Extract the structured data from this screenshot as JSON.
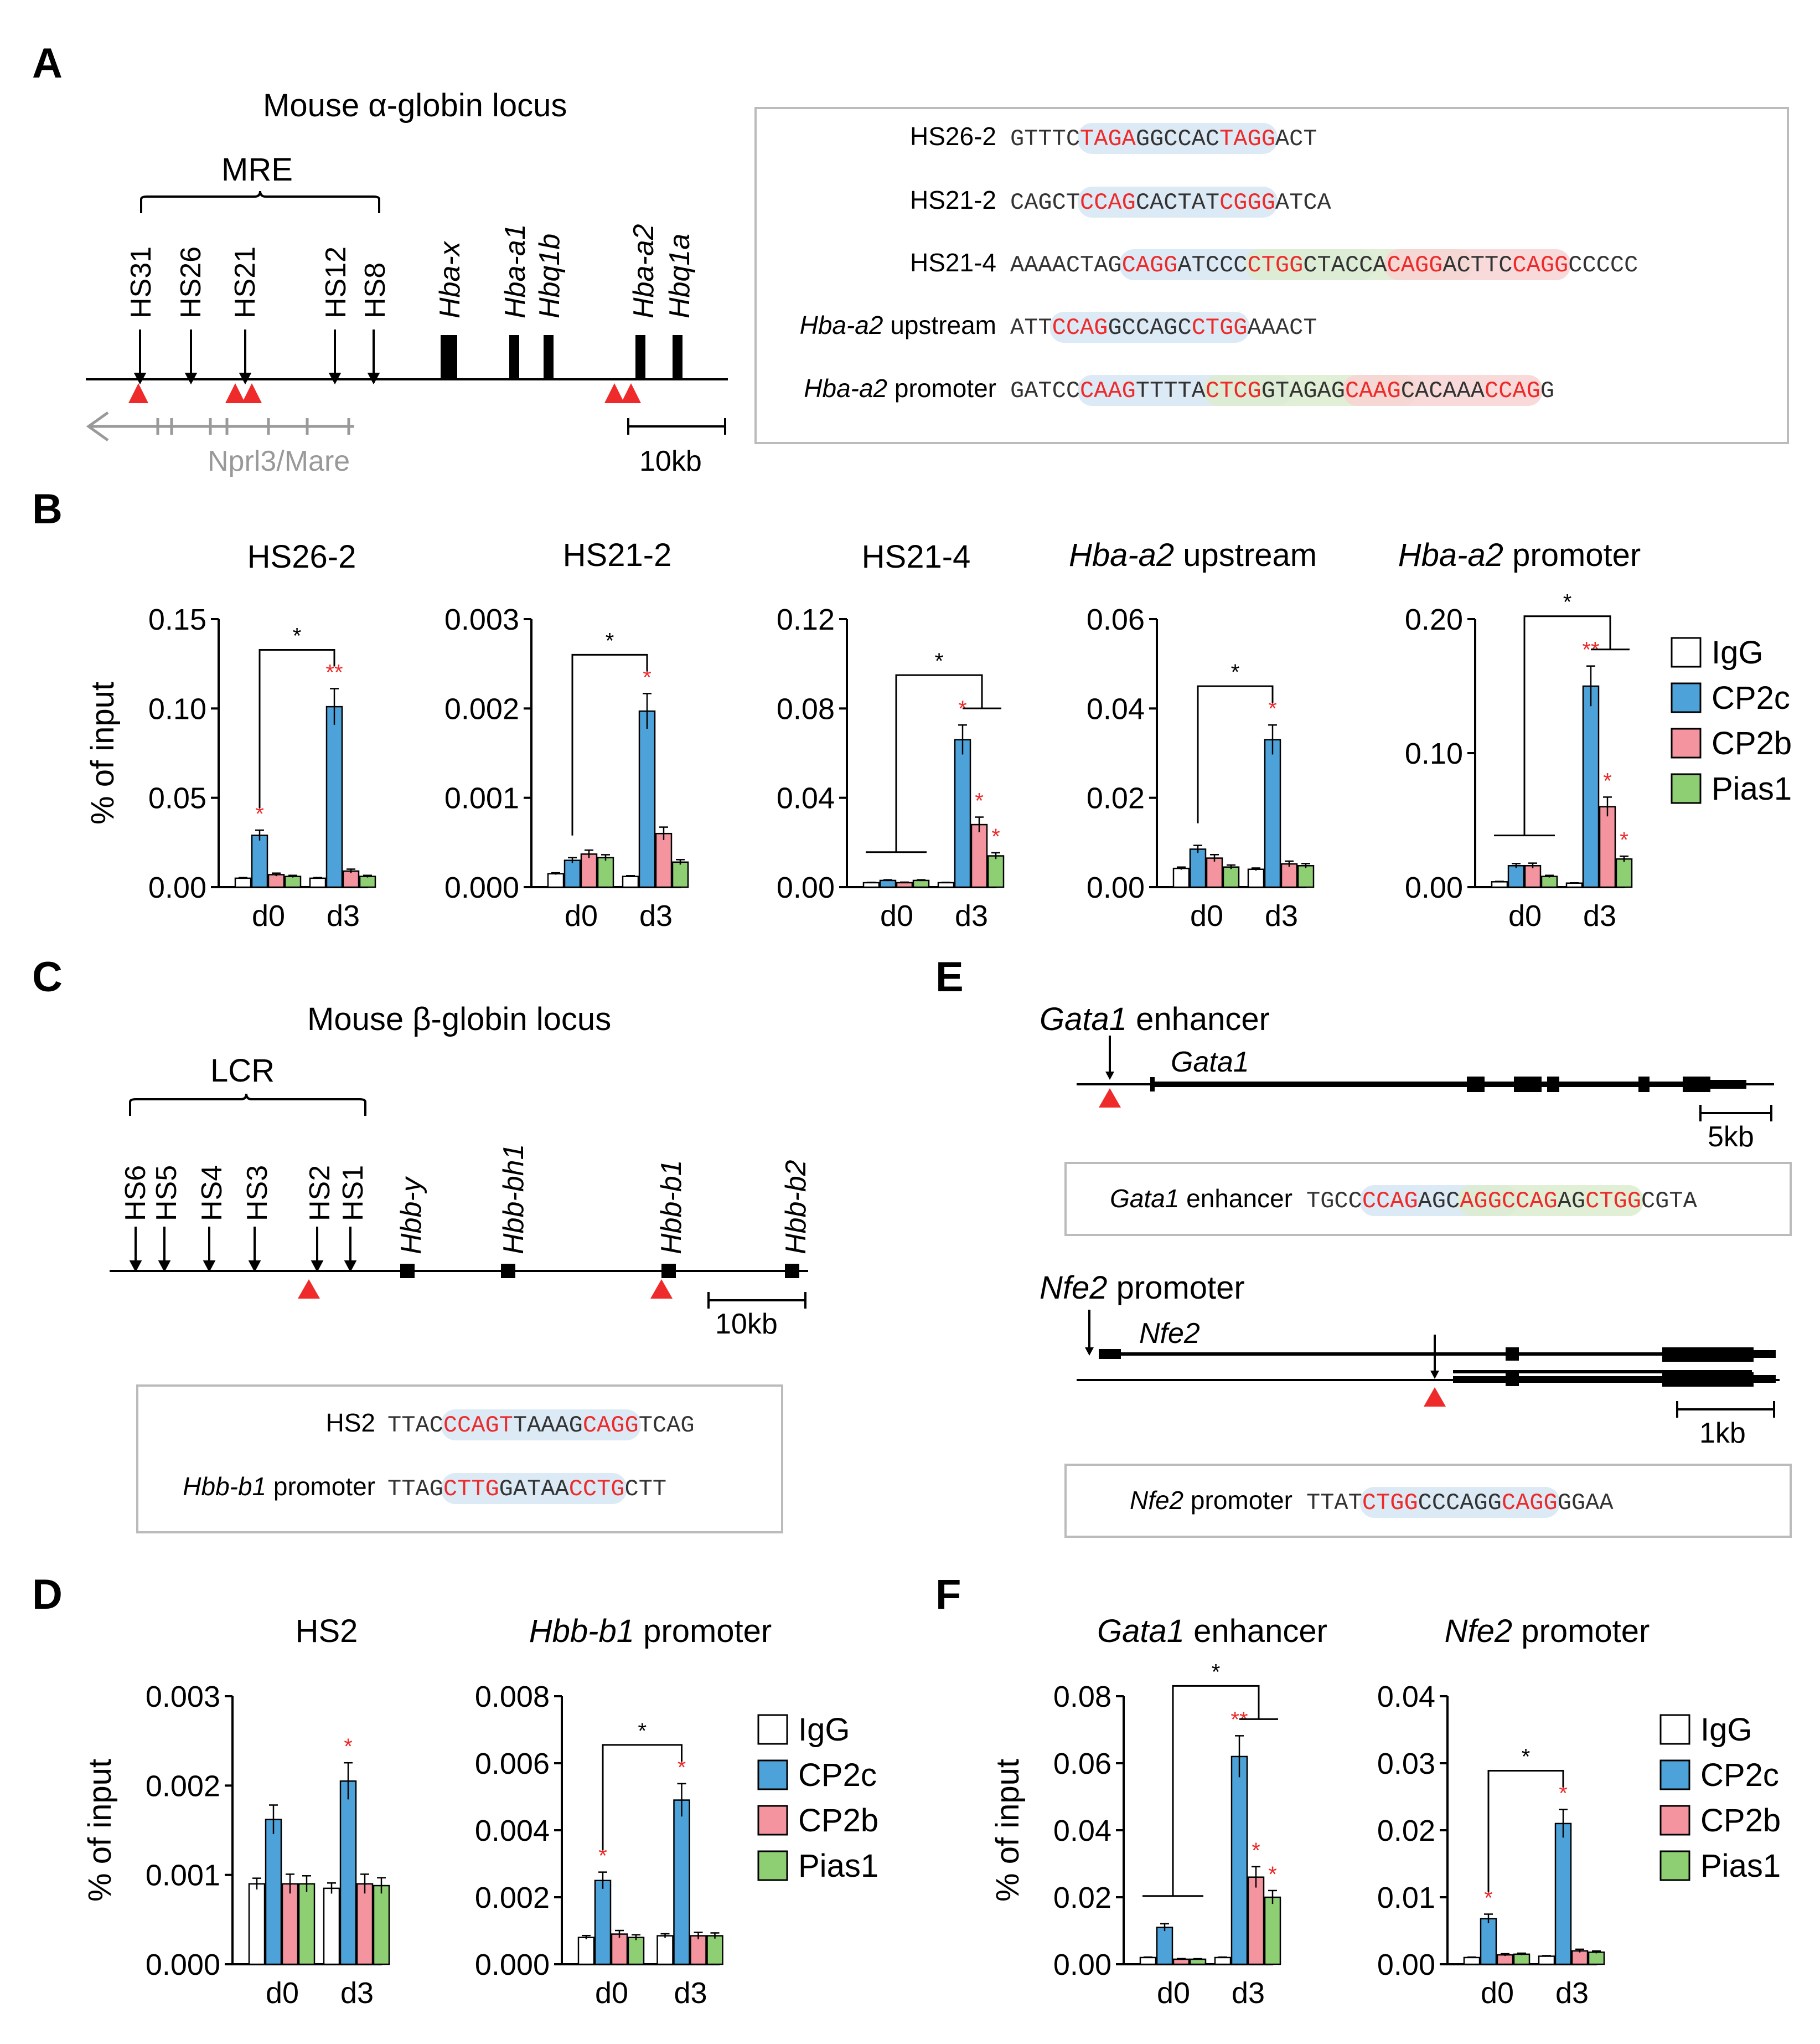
{
  "panels": {
    "A": "A",
    "B": "B",
    "C": "C",
    "D": "D",
    "E": "E",
    "F": "F"
  },
  "colors": {
    "IgG": "#ffffff",
    "CP2c": "#4da3d9",
    "CP2b": "#f4949f",
    "Pias1": "#8fcf74",
    "red": "#ee2a2a",
    "blueBox": "#d6e6f5",
    "greenBox": "#dceccf",
    "redBox": "#f8d4d4"
  },
  "panelA": {
    "title": "Mouse α-globin locus",
    "mre": "MRE",
    "hs": [
      "HS31",
      "HS26",
      "HS21",
      "HS12",
      "HS8"
    ],
    "genes": [
      "Hba-x",
      "Hba-a1",
      "Hbq1b",
      "Hba-a2",
      "Hbq1a"
    ],
    "nprl": "Nprl3/Mare",
    "scale": "10kb",
    "sequences": [
      {
        "label": "HS26-2",
        "seq": "GTTTCTAGAGGCCACTAGGACT"
      },
      {
        "label": "HS21-2",
        "seq": "CAGCTCCAGCACTATCGGGATCA"
      },
      {
        "label": "HS21-4",
        "seq": "AAAACTAGCAGGATCCCCTGGCTACCACAGGACTTCCAGGCCCCC"
      },
      {
        "label_gene": "Hba-a2",
        "label_rest": " upstream",
        "seq": "ATTCCAGGCCAGCCTGGAAACT"
      },
      {
        "label_gene": "Hba-a2",
        "label_rest": " promoter",
        "seq": "GATCCCAAGTTTTACTCGGTAGAGCAAGCACAAACCAGG"
      }
    ]
  },
  "panelC": {
    "title": "Mouse β-globin locus",
    "lcr": "LCR",
    "hs": [
      "HS6",
      "HS5",
      "HS4",
      "HS3",
      "HS2",
      "HS1"
    ],
    "genes": [
      "Hbb-y",
      "Hbb-bh1",
      "Hbb-b1",
      "Hbb-b2"
    ],
    "scale": "10kb",
    "sequences": [
      {
        "label": "HS2",
        "seq": "TTACCCAGTTAAAGCAGGTCAG"
      },
      {
        "label_gene": "Hbb-b1",
        "label_rest": " promoter",
        "seq": "TTAGCTTGGATAACCTGCTT"
      }
    ]
  },
  "panelE": {
    "gata1_title_gene": "Gata1",
    "gata1_title_rest": " enhancer",
    "gata1_gene": "Gata1",
    "gata1_scale": "5kb",
    "gata1_seq_label_gene": "Gata1",
    "gata1_seq_label_rest": " enhancer",
    "gata1_seq": "TGCCCCAGAGCAGGCCAGAGCTGGCGTA",
    "nfe2_title_gene": "Nfe2",
    "nfe2_title_rest": " promoter",
    "nfe2_gene": "Nfe2",
    "nfe2_scale": "1kb",
    "nfe2_seq_label_gene": "Nfe2",
    "nfe2_seq_label_rest": " promoter",
    "nfe2_seq": "TTATCTGGCCCAGGCAGGGGAA"
  },
  "legend": [
    "IgG",
    "CP2c",
    "CP2b",
    "Pias1"
  ],
  "ylabel": "% of input",
  "sig": "*",
  "sig2": "**",
  "chart_data": [
    {
      "type": "bar",
      "panel": "B",
      "title": "HS26-2",
      "categories": [
        "d0",
        "d3"
      ],
      "ylim": [
        0,
        0.15
      ],
      "yticks": [
        "0.00",
        "0.05",
        "0.10",
        "0.15"
      ],
      "series": [
        {
          "name": "IgG",
          "values": [
            0.005,
            0.005
          ]
        },
        {
          "name": "CP2c",
          "values": [
            0.029,
            0.101
          ]
        },
        {
          "name": "CP2b",
          "values": [
            0.007,
            0.009
          ]
        },
        {
          "name": "Pias1",
          "values": [
            0.006,
            0.006
          ]
        }
      ]
    },
    {
      "type": "bar",
      "panel": "B",
      "title": "HS21-2",
      "categories": [
        "d0",
        "d3"
      ],
      "ylim": [
        0,
        0.003
      ],
      "yticks": [
        "0.000",
        "0.001",
        "0.002",
        "0.003"
      ],
      "series": [
        {
          "name": "IgG",
          "values": [
            0.00015,
            0.00012
          ]
        },
        {
          "name": "CP2c",
          "values": [
            0.0003,
            0.00197
          ]
        },
        {
          "name": "CP2b",
          "values": [
            0.00037,
            0.0006
          ]
        },
        {
          "name": "Pias1",
          "values": [
            0.00033,
            0.00028
          ]
        }
      ]
    },
    {
      "type": "bar",
      "panel": "B",
      "title": "HS21-4",
      "categories": [
        "d0",
        "d3"
      ],
      "ylim": [
        0,
        0.12
      ],
      "yticks": [
        "0.00",
        "0.04",
        "0.08",
        "0.12"
      ],
      "series": [
        {
          "name": "IgG",
          "values": [
            0.002,
            0.002
          ]
        },
        {
          "name": "CP2c",
          "values": [
            0.003,
            0.066
          ]
        },
        {
          "name": "CP2b",
          "values": [
            0.002,
            0.028
          ]
        },
        {
          "name": "Pias1",
          "values": [
            0.003,
            0.014
          ]
        }
      ]
    },
    {
      "type": "bar",
      "panel": "B",
      "title": "Hba-a2 upstream",
      "categories": [
        "d0",
        "d3"
      ],
      "ylim": [
        0,
        0.06
      ],
      "yticks": [
        "0.00",
        "0.02",
        "0.04",
        "0.06"
      ],
      "series": [
        {
          "name": "IgG",
          "values": [
            0.0042,
            0.004
          ]
        },
        {
          "name": "CP2c",
          "values": [
            0.0085,
            0.033
          ]
        },
        {
          "name": "CP2b",
          "values": [
            0.0065,
            0.0052
          ]
        },
        {
          "name": "Pias1",
          "values": [
            0.0045,
            0.0048
          ]
        }
      ]
    },
    {
      "type": "bar",
      "panel": "B",
      "title": "Hba-a2 promoter",
      "categories": [
        "d0",
        "d3"
      ],
      "ylim": [
        0,
        0.2
      ],
      "yticks": [
        "0.00",
        "0.10",
        "0.20"
      ],
      "series": [
        {
          "name": "IgG",
          "values": [
            0.004,
            0.003
          ]
        },
        {
          "name": "CP2c",
          "values": [
            0.016,
            0.15
          ]
        },
        {
          "name": "CP2b",
          "values": [
            0.016,
            0.06
          ]
        },
        {
          "name": "Pias1",
          "values": [
            0.008,
            0.021
          ]
        }
      ]
    },
    {
      "type": "bar",
      "panel": "D",
      "title": "HS2",
      "categories": [
        "d0",
        "d3"
      ],
      "ylim": [
        0,
        0.003
      ],
      "yticks": [
        "0.000",
        "0.001",
        "0.002",
        "0.003"
      ],
      "series": [
        {
          "name": "IgG",
          "values": [
            0.0009,
            0.00085
          ]
        },
        {
          "name": "CP2c",
          "values": [
            0.00162,
            0.00205
          ]
        },
        {
          "name": "CP2b",
          "values": [
            0.0009,
            0.0009
          ]
        },
        {
          "name": "Pias1",
          "values": [
            0.0009,
            0.00088
          ]
        }
      ]
    },
    {
      "type": "bar",
      "panel": "D",
      "title": "Hbb-b1 promoter",
      "categories": [
        "d0",
        "d3"
      ],
      "ylim": [
        0,
        0.008
      ],
      "yticks": [
        "0.000",
        "0.002",
        "0.004",
        "0.006",
        "0.008"
      ],
      "series": [
        {
          "name": "IgG",
          "values": [
            0.0008,
            0.00085
          ]
        },
        {
          "name": "CP2c",
          "values": [
            0.0025,
            0.0049
          ]
        },
        {
          "name": "CP2b",
          "values": [
            0.0009,
            0.00085
          ]
        },
        {
          "name": "Pias1",
          "values": [
            0.0008,
            0.00085
          ]
        }
      ]
    },
    {
      "type": "bar",
      "panel": "F",
      "title": "Gata1 enhancer",
      "categories": [
        "d0",
        "d3"
      ],
      "ylim": [
        0,
        0.08
      ],
      "yticks": [
        "0.00",
        "0.02",
        "0.04",
        "0.06",
        "0.08"
      ],
      "series": [
        {
          "name": "IgG",
          "values": [
            0.002,
            0.002
          ]
        },
        {
          "name": "CP2c",
          "values": [
            0.011,
            0.062
          ]
        },
        {
          "name": "CP2b",
          "values": [
            0.0015,
            0.026
          ]
        },
        {
          "name": "Pias1",
          "values": [
            0.0015,
            0.02
          ]
        }
      ]
    },
    {
      "type": "bar",
      "panel": "F",
      "title": "Nfe2 promoter",
      "categories": [
        "d0",
        "d3"
      ],
      "ylim": [
        0,
        0.04
      ],
      "yticks": [
        "0.00",
        "0.01",
        "0.02",
        "0.03",
        "0.04"
      ],
      "series": [
        {
          "name": "IgG",
          "values": [
            0.001,
            0.0012
          ]
        },
        {
          "name": "CP2c",
          "values": [
            0.0068,
            0.021
          ]
        },
        {
          "name": "CP2b",
          "values": [
            0.0014,
            0.002
          ]
        },
        {
          "name": "Pias1",
          "values": [
            0.0015,
            0.0018
          ]
        }
      ]
    }
  ]
}
